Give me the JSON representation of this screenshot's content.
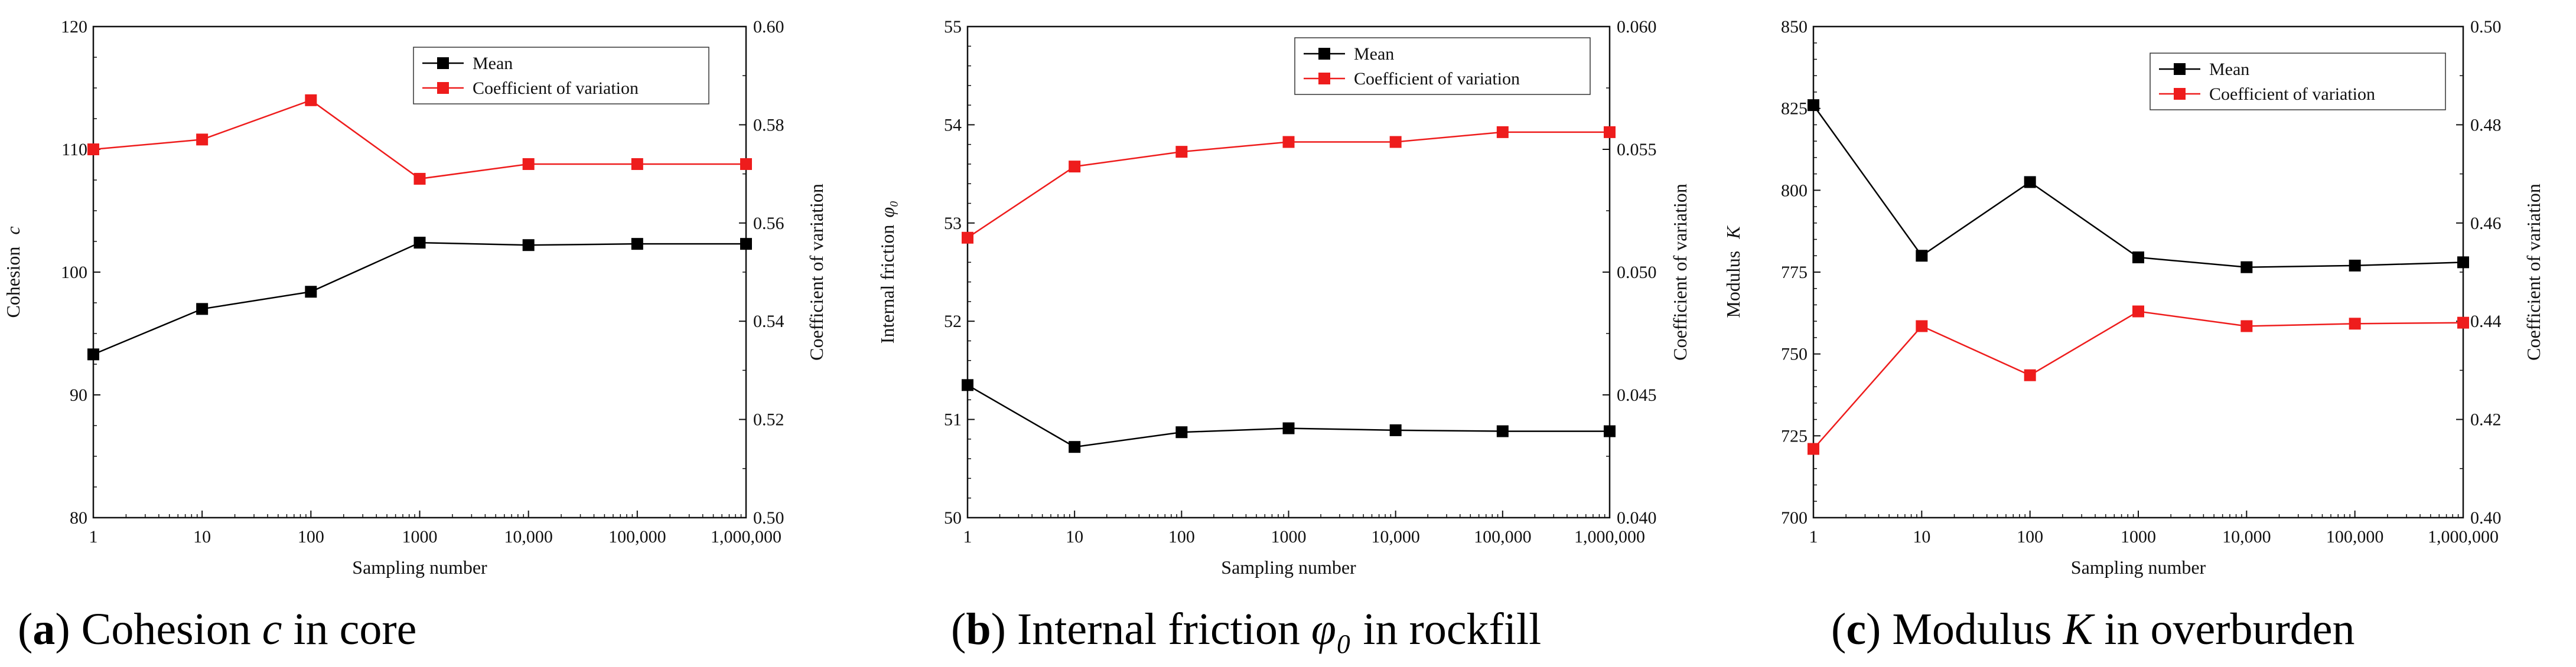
{
  "chart_data": [
    {
      "type": "line",
      "categories": [
        "1",
        "10",
        "100",
        "1000",
        "10,000",
        "100,000",
        "1,000,000"
      ],
      "series": [
        {
          "name": "Mean",
          "axis": "left",
          "color": "#000000",
          "values": [
            93.3,
            97.0,
            98.4,
            102.4,
            102.2,
            102.3,
            102.3
          ]
        },
        {
          "name": "Coefficient of variation",
          "axis": "right",
          "color": "#ee1c1c",
          "values": [
            0.575,
            0.577,
            0.585,
            0.569,
            0.572,
            0.572,
            0.572
          ]
        }
      ],
      "xlabel": "Sampling number",
      "ylabel": {
        "text": "Cohesion ",
        "italic": "c"
      },
      "y2label": "Coefficient of variation",
      "ylim": [
        80,
        120
      ],
      "yticks": [
        "80",
        "90",
        "100",
        "110",
        "120"
      ],
      "y2lim": [
        0.5,
        0.6
      ],
      "y2ticks": [
        "0.50",
        "0.52",
        "0.54",
        "0.56",
        "0.58",
        "0.60"
      ],
      "legend": [
        "Mean",
        "Coefficient of variation"
      ],
      "caption": {
        "letter": "a",
        "before": ") Cohesion ",
        "italic": "c",
        "after": " in core"
      }
    },
    {
      "type": "line",
      "categories": [
        "1",
        "10",
        "100",
        "1000",
        "10,000",
        "100,000",
        "1,000,000"
      ],
      "series": [
        {
          "name": "Mean",
          "axis": "left",
          "color": "#000000",
          "values": [
            51.35,
            50.72,
            50.87,
            50.91,
            50.89,
            50.88,
            50.88
          ]
        },
        {
          "name": "Coefficient of variation",
          "axis": "right",
          "color": "#ee1c1c",
          "values": [
            0.0514,
            0.0543,
            0.0549,
            0.0553,
            0.0553,
            0.0557,
            0.0557
          ]
        }
      ],
      "xlabel": "Sampling number",
      "ylabel": {
        "text": "Internal friction",
        "italic": "φ₀"
      },
      "y2label": "Coefficient of variation",
      "ylim": [
        50,
        55
      ],
      "yticks": [
        "50",
        "51",
        "52",
        "53",
        "54",
        "55"
      ],
      "y2lim": [
        0.04,
        0.06
      ],
      "y2ticks": [
        "0.040",
        "0.045",
        "0.050",
        "0.055",
        "0.060"
      ],
      "legend": [
        "Mean",
        "Coefficient of variation"
      ],
      "caption": {
        "letter": "b",
        "before": ") Internal friction ",
        "italic": "φ₀",
        "after": " in rockfill"
      }
    },
    {
      "type": "line",
      "categories": [
        "1",
        "10",
        "100",
        "1000",
        "10,000",
        "100,000",
        "1,000,000"
      ],
      "series": [
        {
          "name": "Mean",
          "axis": "left",
          "color": "#000000",
          "values": [
            826,
            780,
            802.5,
            779.5,
            776.5,
            777,
            778
          ]
        },
        {
          "name": "Coefficient of variation",
          "axis": "right",
          "color": "#ee1c1c",
          "values": [
            0.414,
            0.439,
            0.429,
            0.442,
            0.439,
            0.4395,
            0.4397
          ]
        }
      ],
      "xlabel": "Sampling number",
      "ylabel": {
        "text": "Modulus ",
        "italic": "K"
      },
      "y2label": "Coefficient of variation",
      "ylim": [
        700,
        850
      ],
      "yticks": [
        "700",
        "725",
        "750",
        "775",
        "800",
        "825",
        "850"
      ],
      "y2lim": [
        0.4,
        0.5
      ],
      "y2ticks": [
        "0.40",
        "0.42",
        "0.44",
        "0.46",
        "0.48",
        "0.50"
      ],
      "legend": [
        "Mean",
        "Coefficient of variation"
      ],
      "caption": {
        "letter": "c",
        "before": ") Modulus ",
        "italic": "K",
        "after": " in overburden"
      }
    }
  ]
}
